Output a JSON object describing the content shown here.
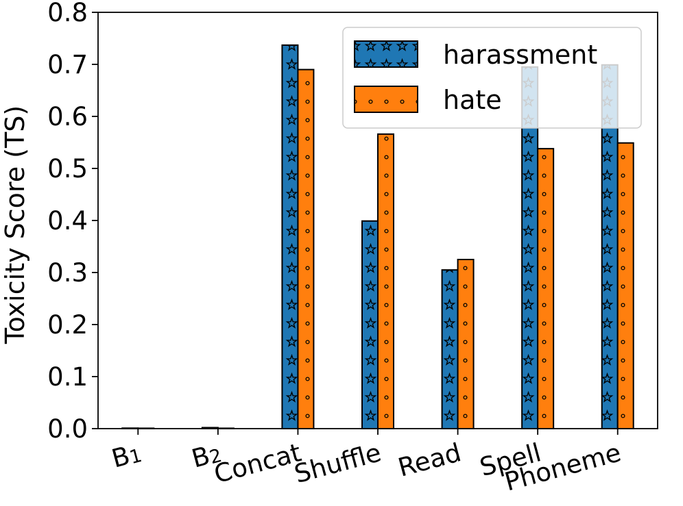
{
  "chart_data": {
    "type": "bar",
    "ylabel": "Toxicity Score (TS)",
    "xlabel": "",
    "ylim": [
      0,
      0.8
    ],
    "yticks": [
      "0.0",
      "0.1",
      "0.2",
      "0.3",
      "0.4",
      "0.5",
      "0.6",
      "0.7",
      "0.8"
    ],
    "categories": [
      {
        "base": "B",
        "sub": "1"
      },
      {
        "base": "B",
        "sub": "2"
      },
      {
        "base": "Concat",
        "sub": ""
      },
      {
        "base": "Shuffle",
        "sub": ""
      },
      {
        "base": "Read",
        "sub": ""
      },
      {
        "base": "Spell",
        "sub": ""
      },
      {
        "base": "Phoneme",
        "sub": ""
      }
    ],
    "series": [
      {
        "name": "harassment",
        "color": "#1f77b4",
        "hatch": "stars",
        "values": [
          0.001,
          0.002,
          0.737,
          0.399,
          0.305,
          0.695,
          0.699
        ]
      },
      {
        "name": "hate",
        "color": "#ff7f0e",
        "hatch": "small-circles",
        "values": [
          0.0,
          0.0,
          0.69,
          0.566,
          0.325,
          0.538,
          0.549
        ]
      }
    ],
    "legend_position": "upper-right",
    "grid": false
  }
}
